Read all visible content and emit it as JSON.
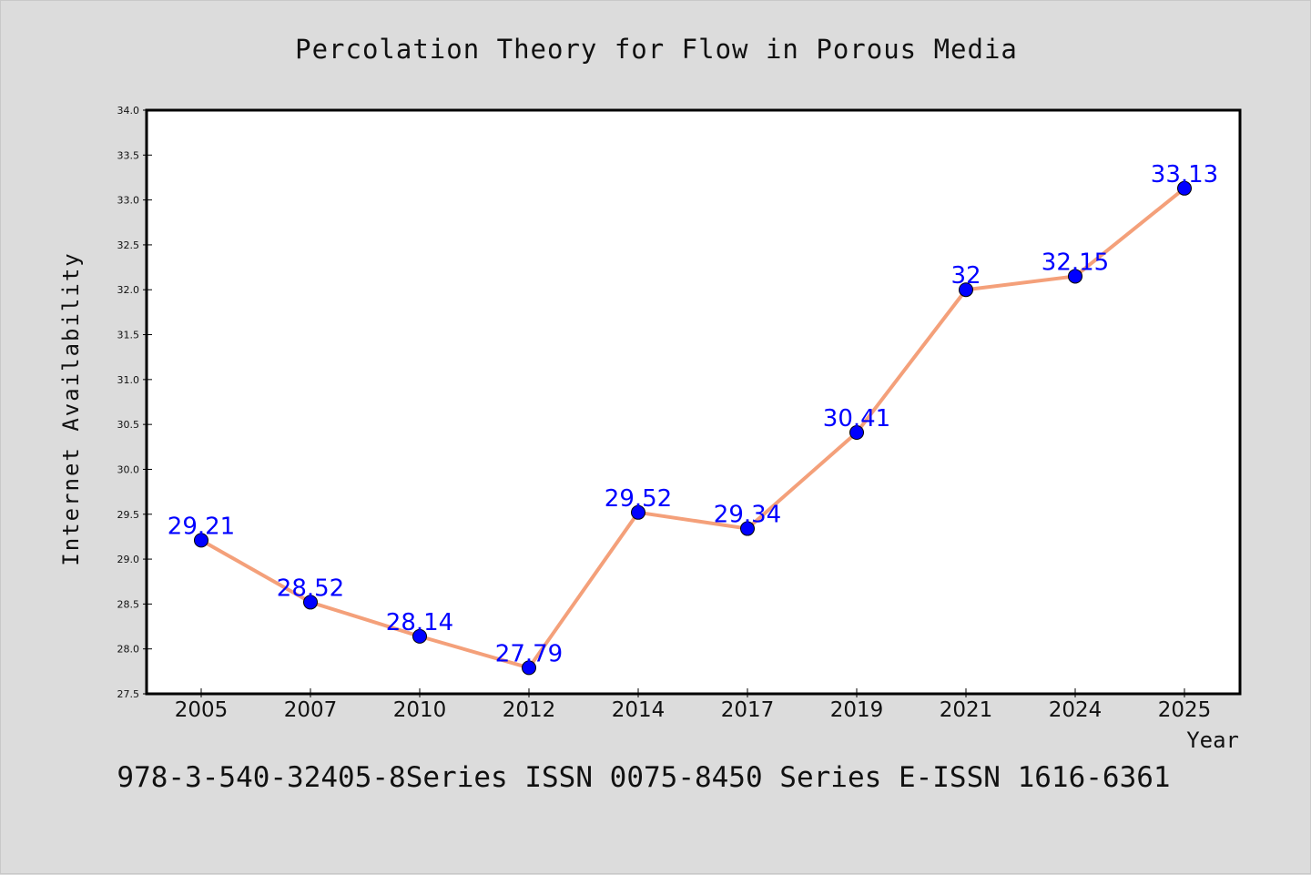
{
  "chart_data": {
    "type": "line",
    "title": "Percolation Theory for Flow in Porous Media",
    "xlabel": "Year",
    "ylabel": "Internet Availability",
    "categories": [
      "2005",
      "2007",
      "2010",
      "2012",
      "2014",
      "2017",
      "2019",
      "2021",
      "2024",
      "2025"
    ],
    "series": [
      {
        "values": [
          29.21,
          28.52,
          28.14,
          27.79,
          29.52,
          29.34,
          30.41,
          32,
          32.15,
          33.13
        ],
        "labels": [
          "29.21",
          "28.52",
          "28.14",
          "27.79",
          "29.52",
          "29.34",
          "30.41",
          "32",
          "32.15",
          "33.13"
        ]
      }
    ],
    "ylim": [
      27.5,
      34.0
    ],
    "yticks": [
      "27.5",
      "28.0",
      "28.5",
      "29.0",
      "29.5",
      "30.0",
      "30.5",
      "31.0",
      "31.5",
      "32.0",
      "32.5",
      "33.0",
      "33.5",
      "34.0"
    ],
    "grid": false,
    "line_color": "#f4a07a",
    "marker_color": "#0000ff",
    "label_color": "#0000ff"
  },
  "footnote": "978-3-540-32405-8Series ISSN 0075-8450 Series E-ISSN 1616-6361"
}
